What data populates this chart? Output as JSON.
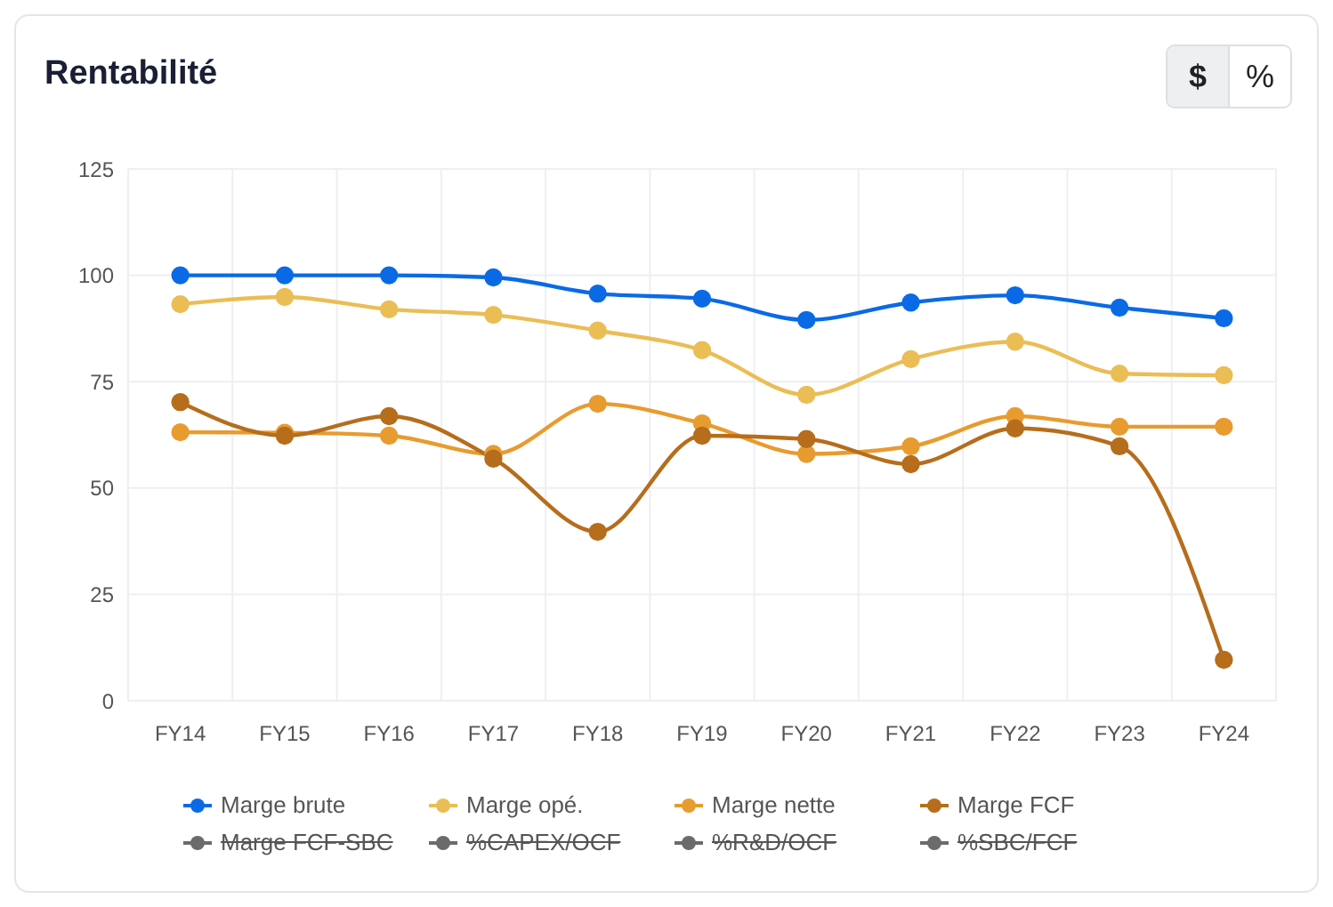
{
  "chart_data": {
    "type": "line",
    "title": "Rentabilité",
    "annotations": [
      "$",
      "%"
    ],
    "categories": [
      "FY14",
      "FY15",
      "FY16",
      "FY17",
      "FY18",
      "FY19",
      "FY20",
      "FY21",
      "FY22",
      "FY23",
      "FY24"
    ],
    "series": [
      {
        "name": "Marge brute",
        "color": "#0a6ae6",
        "values": [
          100,
          100,
          100,
          99.5,
          95.7,
          94.5,
          89.5,
          93.6,
          95.3,
          92.4,
          89.9
        ]
      },
      {
        "name": "Marge opé.",
        "color": "#ebbd55",
        "values": [
          93.2,
          94.9,
          92,
          90.7,
          87,
          82.4,
          71.9,
          80.3,
          84.4,
          76.9,
          76.5
        ]
      },
      {
        "name": "Marge nette",
        "color": "#e89b2f",
        "values": [
          63.1,
          63,
          62.3,
          58,
          69.8,
          65.2,
          58,
          59.8,
          66.9,
          64.4,
          64.4
        ]
      },
      {
        "name": "Marge FCF",
        "color": "#b66d1c",
        "values": [
          70.2,
          62.3,
          66.9,
          56.9,
          39.7,
          62.3,
          61.5,
          55.6,
          64,
          59.8,
          9.6
        ]
      },
      {
        "name": "Marge FCF-SBC",
        "color": "#6b6b6b",
        "values": [
          null,
          null,
          null,
          null,
          null,
          null,
          null,
          null,
          null,
          null,
          null
        ]
      },
      {
        "name": "%CAPEX/OCF",
        "color": "#6b6b6b",
        "values": [
          null,
          null,
          null,
          null,
          null,
          null,
          null,
          null,
          null,
          null,
          null
        ]
      },
      {
        "name": "%R&D/OCF",
        "color": "#6b6b6b",
        "values": [
          null,
          null,
          null,
          null,
          null,
          null,
          null,
          null,
          null,
          null,
          null
        ]
      },
      {
        "name": "%SBC/FCF",
        "color": "#6b6b6b",
        "values": [
          null,
          null,
          null,
          null,
          null,
          null,
          null,
          null,
          null,
          null,
          null
        ]
      }
    ],
    "ylim": [
      0,
      125
    ],
    "yticks": [
      0,
      25,
      50,
      75,
      100,
      125
    ],
    "grid": true,
    "legend": "bottom",
    "marker": "circle",
    "line_style": "solid"
  }
}
